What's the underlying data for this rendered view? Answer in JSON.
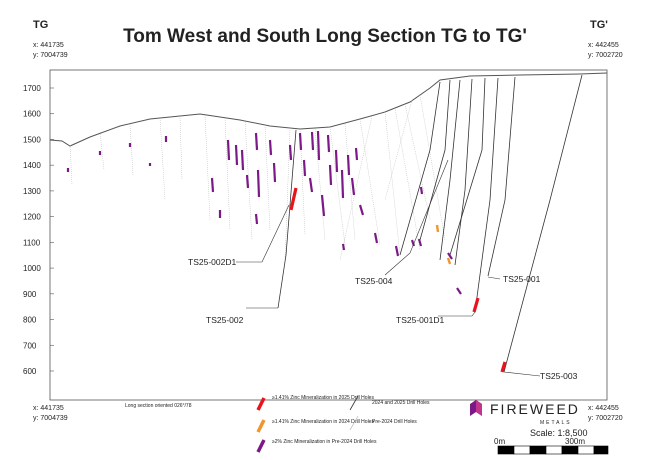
{
  "title": "Tom West and South Long Section TG to TG'",
  "corners": {
    "top_left": {
      "name": "TG",
      "x": "x: 441735",
      "y": "y: 7004739"
    },
    "top_right": {
      "name": "TG'",
      "x": "x: 442455",
      "y": "y: 7002720"
    },
    "bottom_left": {
      "x": "x: 441735",
      "y": "y: 7004739"
    },
    "bottom_right": {
      "x": "x: 442455",
      "y": "y: 7002720"
    }
  },
  "elevation_ticks": [
    1700,
    1600,
    1500,
    1400,
    1300,
    1200,
    1100,
    1000,
    900,
    800,
    700,
    600
  ],
  "hole_labels": [
    "TS25-002D1",
    "TS25-002",
    "TS25-004",
    "TS25-001",
    "TS25-001D1",
    "TS25-003"
  ],
  "note": "Long section oriented 026°/78",
  "legend": [
    "≥1.41% Zinc Mineralization in 2025 Drill Holes",
    "≥1.41% Zinc Mineralization in 2024 Drill Holes",
    "≥2% Zinc Mineralization in Pre-2024 Drill Holes",
    "2024 and 2025 Drill Holes",
    "Pre-2024 Drill Holes"
  ],
  "logo": {
    "name": "FIREWEED",
    "sub": "METALS"
  },
  "scale": {
    "label": "Scale: 1:8,500",
    "start": "0m",
    "end": "300m"
  }
}
